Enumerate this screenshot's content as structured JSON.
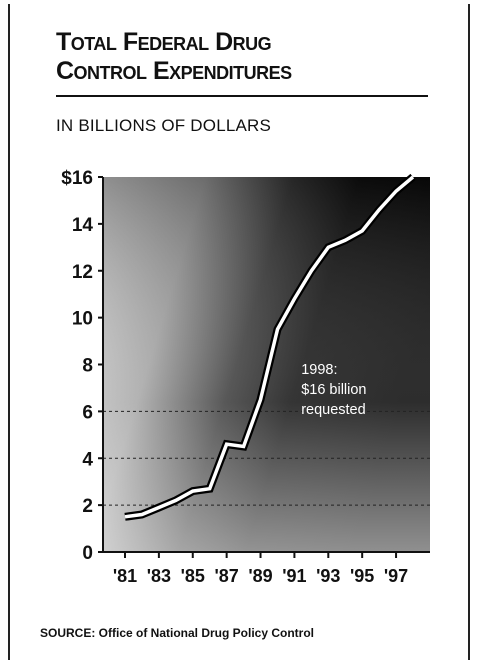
{
  "header": {
    "title_line1": "Total Federal Drug",
    "title_line2": "Control Expenditures",
    "subtitle": "IN BILLIONS OF DOLLARS"
  },
  "source": "SOURCE: Office of National Drug Policy Control",
  "chart_data": {
    "type": "line",
    "title": "TOTAL FEDERAL DRUG CONTROL EXPENDITURES",
    "subtitle": "IN BILLIONS OF DOLLARS",
    "xlabel": "",
    "ylabel": "",
    "xlim": [
      1981,
      1998
    ],
    "ylim": [
      0,
      16
    ],
    "grid": "dashed horizontal lines at 2, 4, 6",
    "y_ticks": [
      {
        "value": 0,
        "label": "0"
      },
      {
        "value": 2,
        "label": "2"
      },
      {
        "value": 4,
        "label": "4"
      },
      {
        "value": 6,
        "label": "6"
      },
      {
        "value": 8,
        "label": "8"
      },
      {
        "value": 10,
        "label": "10"
      },
      {
        "value": 12,
        "label": "12"
      },
      {
        "value": 14,
        "label": "14"
      },
      {
        "value": 16,
        "label": "$16"
      }
    ],
    "x_ticks": [
      {
        "value": 1981,
        "label": "'81"
      },
      {
        "value": 1983,
        "label": "'83"
      },
      {
        "value": 1985,
        "label": "'85"
      },
      {
        "value": 1987,
        "label": "'87"
      },
      {
        "value": 1989,
        "label": "'89"
      },
      {
        "value": 1991,
        "label": "'91"
      },
      {
        "value": 1993,
        "label": "'93"
      },
      {
        "value": 1995,
        "label": "'95"
      },
      {
        "value": 1997,
        "label": "'97"
      }
    ],
    "series": [
      {
        "x": [
          1981,
          1982,
          1983,
          1984,
          1985,
          1986,
          1987,
          1988,
          1989,
          1990,
          1991,
          1992,
          1993,
          1994,
          1995,
          1996,
          1997,
          1998
        ],
        "values": [
          1.5,
          1.6,
          1.9,
          2.2,
          2.6,
          2.7,
          4.6,
          4.5,
          6.5,
          9.5,
          10.8,
          12.0,
          13.0,
          13.3,
          13.7,
          14.6,
          15.4,
          16.0
        ]
      }
    ],
    "annotation": {
      "lines": [
        "1998:",
        "$16 billion",
        "requested"
      ],
      "x": 1991.4,
      "y": 7.6
    },
    "colors": {
      "panel_dark": "#0d0d0d",
      "panel_light": "#e2e2e2",
      "line_fill": "#ffffff",
      "line_edge": "#000000"
    }
  }
}
